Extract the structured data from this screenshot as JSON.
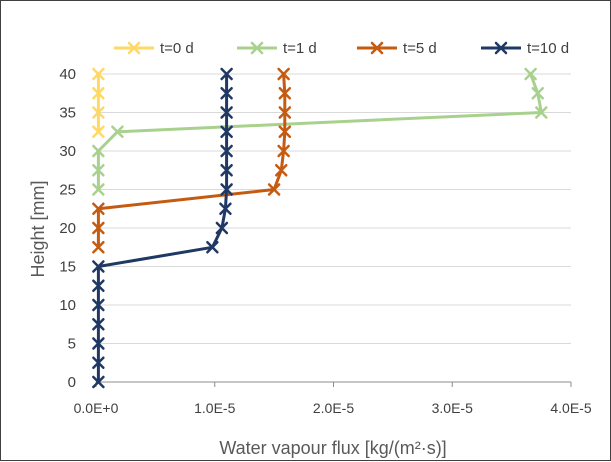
{
  "chart_data": {
    "type": "line",
    "title": "",
    "xlabel": "Water vapour flux [kg/(m²·s)]",
    "ylabel": "Height [mm]",
    "xlim": [
      0,
      4e-05
    ],
    "ylim": [
      0,
      40
    ],
    "x_ticks": [
      {
        "value": 0,
        "label": "0.0E+0"
      },
      {
        "value": 1e-05,
        "label": "1.0E-5"
      },
      {
        "value": 2e-05,
        "label": "2.0E-5"
      },
      {
        "value": 3e-05,
        "label": "3.0E-5"
      },
      {
        "value": 4e-05,
        "label": "4.0E-5"
      }
    ],
    "y_ticks": [
      {
        "value": 0,
        "label": "0"
      },
      {
        "value": 5,
        "label": "5"
      },
      {
        "value": 10,
        "label": "10"
      },
      {
        "value": 15,
        "label": "15"
      },
      {
        "value": 20,
        "label": "20"
      },
      {
        "value": 25,
        "label": "25"
      },
      {
        "value": 30,
        "label": "30"
      },
      {
        "value": 35,
        "label": "35"
      },
      {
        "value": 40,
        "label": "40"
      }
    ],
    "grid": "horizontal",
    "legend_position": "top",
    "marker": "x",
    "series": [
      {
        "name": "t=0 d",
        "color": "#ffd966",
        "points": [
          {
            "x": 2e-07,
            "y": 32.5
          },
          {
            "x": 2e-07,
            "y": 35
          },
          {
            "x": 2e-07,
            "y": 37.5
          },
          {
            "x": 2e-07,
            "y": 40
          }
        ]
      },
      {
        "name": "t=1 d",
        "color": "#a9d18e",
        "points": [
          {
            "x": 2e-07,
            "y": 25
          },
          {
            "x": 2e-07,
            "y": 27.5
          },
          {
            "x": 2e-07,
            "y": 30
          },
          {
            "x": 1.8e-06,
            "y": 32.5
          },
          {
            "x": 3.75e-05,
            "y": 35
          },
          {
            "x": 3.72e-05,
            "y": 37.5
          },
          {
            "x": 3.66e-05,
            "y": 40
          }
        ]
      },
      {
        "name": "t=5 d",
        "color": "#c55a11",
        "points": [
          {
            "x": 2e-07,
            "y": 17.5
          },
          {
            "x": 2e-07,
            "y": 20
          },
          {
            "x": 2e-07,
            "y": 22.5
          },
          {
            "x": 1.5e-05,
            "y": 25
          },
          {
            "x": 1.56e-05,
            "y": 27.5
          },
          {
            "x": 1.58e-05,
            "y": 30
          },
          {
            "x": 1.59e-05,
            "y": 32.5
          },
          {
            "x": 1.59e-05,
            "y": 35
          },
          {
            "x": 1.59e-05,
            "y": 37.5
          },
          {
            "x": 1.58e-05,
            "y": 40
          }
        ]
      },
      {
        "name": "t=10 d",
        "color": "#1f3864",
        "points": [
          {
            "x": 2e-07,
            "y": 0
          },
          {
            "x": 2e-07,
            "y": 2.5
          },
          {
            "x": 2e-07,
            "y": 5
          },
          {
            "x": 2e-07,
            "y": 7.5
          },
          {
            "x": 2e-07,
            "y": 10
          },
          {
            "x": 2e-07,
            "y": 12.5
          },
          {
            "x": 2e-07,
            "y": 15
          },
          {
            "x": 9.8e-06,
            "y": 17.5
          },
          {
            "x": 1.06e-05,
            "y": 20
          },
          {
            "x": 1.09e-05,
            "y": 22.5
          },
          {
            "x": 1.1e-05,
            "y": 25
          },
          {
            "x": 1.1e-05,
            "y": 27.5
          },
          {
            "x": 1.1e-05,
            "y": 30
          },
          {
            "x": 1.1e-05,
            "y": 32.5
          },
          {
            "x": 1.1e-05,
            "y": 35
          },
          {
            "x": 1.1e-05,
            "y": 37.5
          },
          {
            "x": 1.1e-05,
            "y": 40
          }
        ]
      }
    ]
  }
}
